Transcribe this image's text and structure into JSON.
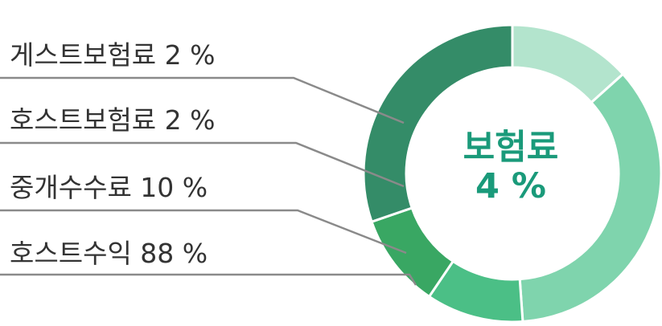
{
  "chart_data": {
    "type": "donut",
    "center_label": "보험료",
    "center_value": "4 %",
    "slices": [
      {
        "label": "게스트보험료 2 %",
        "value": 2,
        "color": "#348c68"
      },
      {
        "label": "호스트보험료 2 %",
        "value": 2,
        "color": "#2e8e62"
      },
      {
        "label": "중개수수료 10 %",
        "value": 10,
        "color": "#39a763"
      },
      {
        "label": "호스트수익 88 %",
        "value": 88,
        "color": "#4bbf86"
      }
    ],
    "ring_segments_colors": [
      "#b3e4cd",
      "#7fd4ad",
      "#4bbf86",
      "#39a763",
      "#348c68"
    ]
  }
}
